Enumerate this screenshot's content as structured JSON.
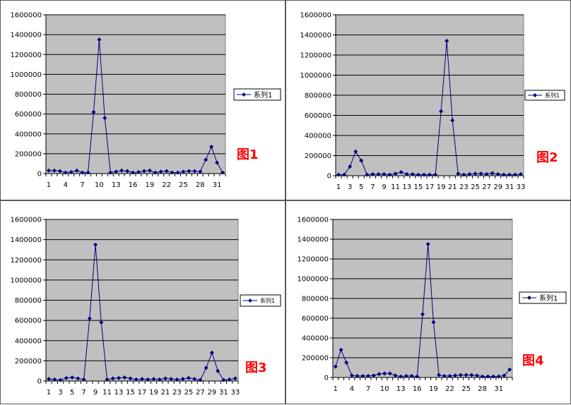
{
  "figures": [
    {
      "label": "图1"
    },
    {
      "label": "图2"
    },
    {
      "label": "图3"
    },
    {
      "label": "图4"
    }
  ],
  "chart_data": [
    {
      "type": "line",
      "ylim": [
        0,
        1600000
      ],
      "yticks": [
        "0",
        "200000",
        "400000",
        "600000",
        "800000",
        "1000000",
        "1200000",
        "1400000",
        "1600000"
      ],
      "xticks": [
        "1",
        "4",
        "7",
        "10",
        "13",
        "16",
        "19",
        "22",
        "25",
        "28",
        "31"
      ],
      "grid": true,
      "legend_position": "right",
      "series": [
        {
          "name": "系列1",
          "x": [
            1,
            2,
            3,
            4,
            5,
            6,
            7,
            8,
            9,
            10,
            11,
            12,
            13,
            14,
            15,
            16,
            17,
            18,
            19,
            20,
            21,
            22,
            23,
            24,
            25,
            26,
            27,
            28,
            29,
            30,
            31,
            32
          ],
          "values": [
            30000,
            30000,
            25000,
            10000,
            15000,
            30000,
            10000,
            10000,
            620000,
            1350000,
            560000,
            10000,
            20000,
            30000,
            25000,
            10000,
            15000,
            25000,
            30000,
            10000,
            20000,
            25000,
            10000,
            10000,
            20000,
            25000,
            25000,
            20000,
            140000,
            270000,
            110000,
            10000
          ]
        }
      ]
    },
    {
      "type": "line",
      "ylim": [
        0,
        1600000
      ],
      "yticks": [
        "0",
        "200000",
        "400000",
        "600000",
        "800000",
        "1000000",
        "1200000",
        "1400000",
        "1600000"
      ],
      "xticks": [
        "1",
        "3",
        "5",
        "7",
        "9",
        "11",
        "13",
        "15",
        "17",
        "19",
        "21",
        "23",
        "25",
        "27",
        "29",
        "31",
        "33"
      ],
      "grid": true,
      "legend_position": "right",
      "series": [
        {
          "name": "系列1",
          "x": [
            1,
            2,
            3,
            4,
            5,
            6,
            7,
            8,
            9,
            10,
            11,
            12,
            13,
            14,
            15,
            16,
            17,
            18,
            19,
            20,
            21,
            22,
            23,
            24,
            25,
            26,
            27,
            28,
            29,
            30,
            31,
            32,
            33
          ],
          "values": [
            10000,
            10000,
            90000,
            240000,
            150000,
            10000,
            15000,
            15000,
            15000,
            10000,
            20000,
            35000,
            15000,
            15000,
            10000,
            10000,
            10000,
            10000,
            640000,
            1340000,
            550000,
            20000,
            10000,
            15000,
            20000,
            20000,
            15000,
            25000,
            15000,
            10000,
            10000,
            10000,
            15000
          ]
        }
      ]
    },
    {
      "type": "line",
      "ylim": [
        0,
        1600000
      ],
      "yticks": [
        "0",
        "200000",
        "400000",
        "600000",
        "800000",
        "1000000",
        "1200000",
        "1400000",
        "1600000"
      ],
      "xticks": [
        "1",
        "3",
        "5",
        "7",
        "9",
        "11",
        "13",
        "15",
        "17",
        "19",
        "21",
        "23",
        "25",
        "27",
        "29",
        "31",
        "33"
      ],
      "grid": true,
      "legend_position": "right",
      "series": [
        {
          "name": "系列1",
          "x": [
            1,
            2,
            3,
            4,
            5,
            6,
            7,
            8,
            9,
            10,
            11,
            12,
            13,
            14,
            15,
            16,
            17,
            18,
            19,
            20,
            21,
            22,
            23,
            24,
            25,
            26,
            27,
            28,
            29,
            30,
            31,
            32,
            33
          ],
          "values": [
            20000,
            15000,
            10000,
            30000,
            35000,
            25000,
            15000,
            620000,
            1350000,
            580000,
            15000,
            25000,
            30000,
            35000,
            25000,
            15000,
            20000,
            15000,
            20000,
            15000,
            25000,
            20000,
            15000,
            20000,
            30000,
            20000,
            10000,
            130000,
            280000,
            100000,
            10000,
            15000,
            25000
          ]
        }
      ]
    },
    {
      "type": "line",
      "ylim": [
        0,
        1600000
      ],
      "yticks": [
        "0",
        "200000",
        "400000",
        "600000",
        "800000",
        "1000000",
        "1200000",
        "1400000",
        "1600000"
      ],
      "xticks": [
        "1",
        "4",
        "7",
        "10",
        "13",
        "16",
        "19",
        "22",
        "25",
        "28",
        "31"
      ],
      "grid": true,
      "legend_position": "right",
      "series": [
        {
          "name": "系列1",
          "x": [
            1,
            2,
            3,
            4,
            5,
            6,
            7,
            8,
            9,
            10,
            11,
            12,
            13,
            14,
            15,
            16,
            17,
            18,
            19,
            20,
            21,
            22,
            23,
            24,
            25,
            26,
            27,
            28,
            29,
            30,
            31,
            32,
            33
          ],
          "values": [
            110000,
            280000,
            150000,
            20000,
            15000,
            15000,
            15000,
            20000,
            35000,
            40000,
            40000,
            20000,
            10000,
            15000,
            15000,
            10000,
            640000,
            1350000,
            560000,
            25000,
            15000,
            15000,
            20000,
            25000,
            25000,
            25000,
            20000,
            10000,
            10000,
            10000,
            10000,
            20000,
            80000
          ]
        }
      ]
    }
  ]
}
